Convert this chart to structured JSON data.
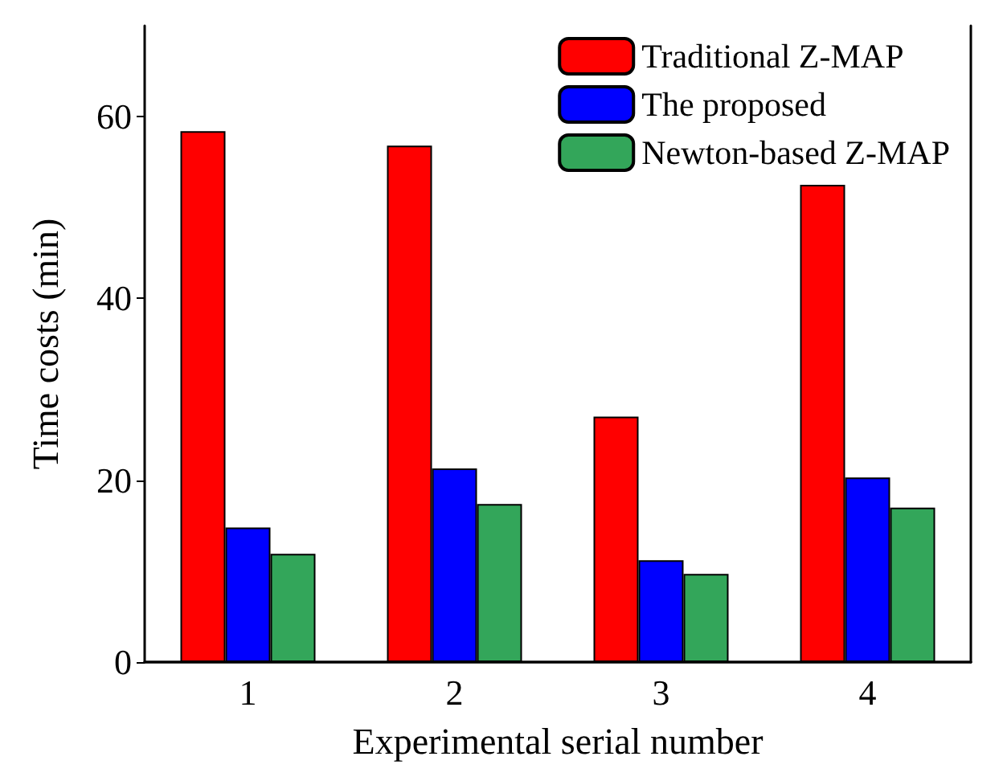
{
  "chart_data": {
    "type": "bar",
    "xlabel": "Experimental serial number",
    "ylabel": "Time costs (min)",
    "categories": [
      "1",
      "2",
      "3",
      "4"
    ],
    "series": [
      {
        "name": "Traditional Z-MAP",
        "color": "#ff0000",
        "values": [
          58.4,
          56.8,
          27.0,
          52.5
        ]
      },
      {
        "name": "The proposed",
        "color": "#0000ff",
        "values": [
          14.8,
          21.3,
          11.2,
          20.3
        ]
      },
      {
        "name": "Newton-based Z-MAP",
        "color": "#33a65a",
        "values": [
          11.9,
          17.4,
          9.7,
          17.0
        ]
      }
    ],
    "ylim": [
      0,
      70
    ],
    "yticks": [
      0,
      20,
      40,
      60
    ],
    "grid": false,
    "legend": "top right"
  }
}
